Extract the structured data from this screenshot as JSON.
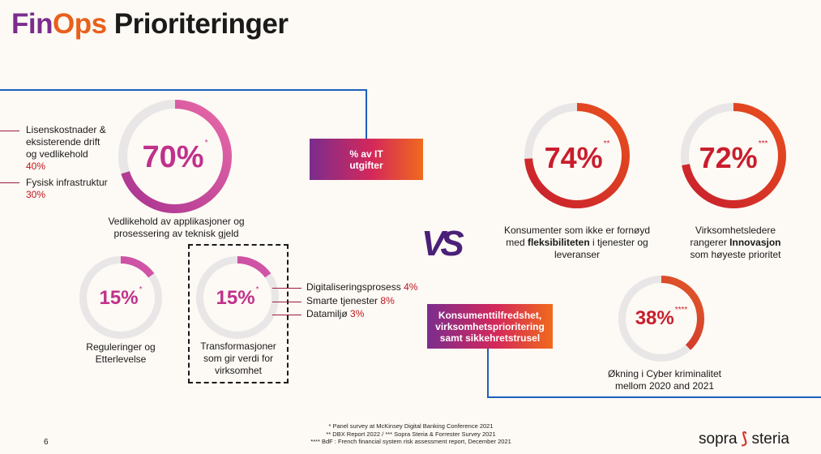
{
  "title": {
    "part1": "Fin",
    "part2": "Ops",
    "part3": " Prioriteringer"
  },
  "colors": {
    "purple": "#7b2d8e",
    "orange": "#e8601c",
    "pink": "#d64891",
    "red": "#d22a2f",
    "track": "#e8e6e6",
    "line": "#1f5fbf"
  },
  "maintenance": {
    "percent": "70%",
    "marker": "*",
    "fraction": 0.7,
    "caption_line1": "Vedlikehold av applikasjoner og",
    "caption_line2": "prosessering av teknisk gjeld",
    "items": [
      {
        "line1": "Lisenskostnader &",
        "line2": "eksisterende  drift",
        "line3": "og vedlikehold",
        "value": "40%"
      },
      {
        "line1": "Fysisk infrastruktur",
        "value": "30%"
      }
    ]
  },
  "regulations": {
    "percent": "15%",
    "marker": "*",
    "fraction": 0.15,
    "caption_line1": "Reguleringer og",
    "caption_line2": "Etterlevelse"
  },
  "transformations": {
    "percent": "15%",
    "marker": "*",
    "fraction": 0.15,
    "caption_line1": "Transformasjoner",
    "caption_line2": "som gir verdi for",
    "caption_line3": "virksomhet",
    "items": [
      {
        "label": "Digitaliseringsprosess",
        "value": "4%"
      },
      {
        "label": "Smarte tjenester",
        "value": "8%"
      },
      {
        "label": "Datamiljø",
        "value": "3%"
      }
    ]
  },
  "it_box": {
    "line1": "% av IT",
    "line2": "utgifter"
  },
  "vs": "VS",
  "consumers": {
    "percent": "74%",
    "marker": "**",
    "fraction": 0.74,
    "caption_line1": "Konsumenter som ikke er fornøyd",
    "caption_line2a": "med ",
    "caption_line2b": "fleksibiliteten",
    "caption_line2c": " i tjenester og",
    "caption_line3": "leveranser"
  },
  "leaders": {
    "percent": "72%",
    "marker": "***",
    "fraction": 0.72,
    "caption_line1": "Virksomhetsledere",
    "caption_line2a": "rangerer ",
    "caption_line2b": "Innovasjon",
    "caption_line3": "som høyeste prioritet"
  },
  "cyber": {
    "percent": "38%",
    "marker": "****",
    "fraction": 0.38,
    "caption_line1": "Økning i Cyber kriminalitet",
    "caption_line2": "mellom 2020 and 2021"
  },
  "consumer_box": {
    "line1": "Konsumenttilfredshet,",
    "line2": "virksomhetsprioritering",
    "line3": "samt sikkehretstrusel"
  },
  "footnotes": [
    "* Panel survey at McKinsey Digital Banking Conference 2021",
    "** DBX Report 2022 / *** Sopra Steria & Forrester Survey 2021",
    "**** BdF : French financial system risk assessment report, December 2021"
  ],
  "page_number": "6",
  "logo": {
    "left": "sopra",
    "right": "steria",
    "mark_icon": "sopra-steria-mark-icon"
  }
}
